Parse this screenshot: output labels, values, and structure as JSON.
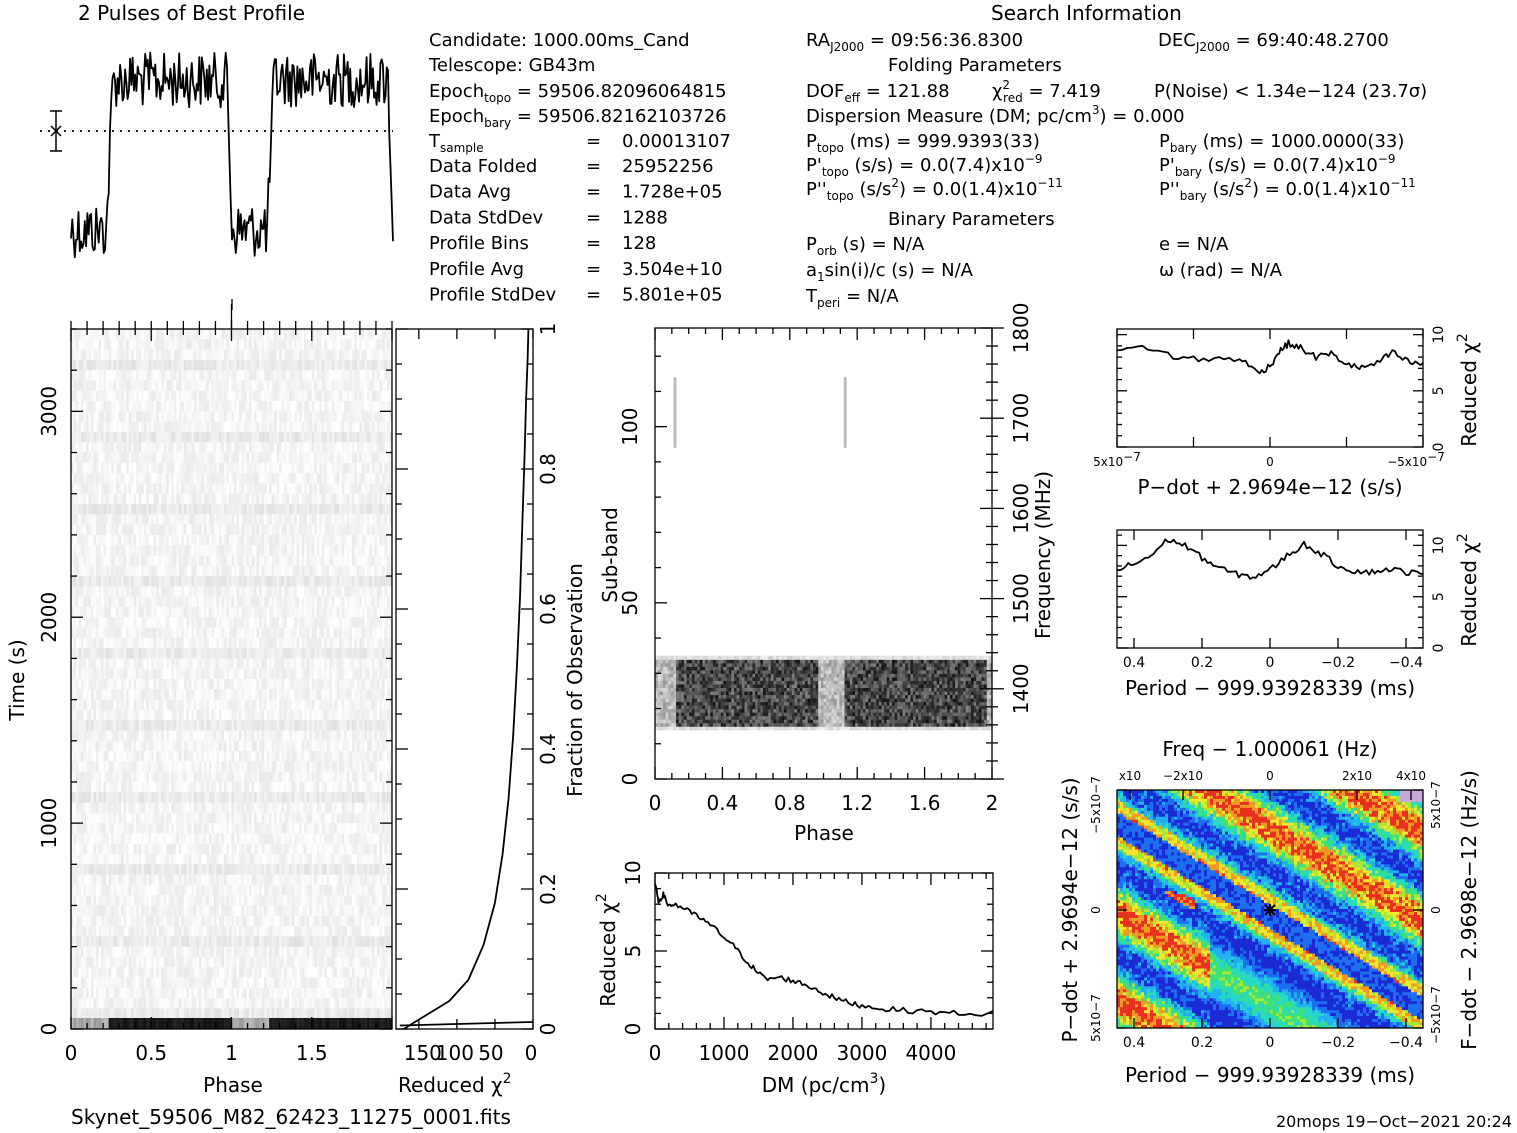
{
  "header": {
    "profile_title": "2 Pulses of Best Profile",
    "search_title": "Search Information",
    "fold_title": "Folding Parameters",
    "binary_title": "Binary Parameters"
  },
  "info": {
    "candidate": "Candidate:   1000.00ms_Cand",
    "telescope": "Telescope:   GB43m",
    "epoch_topo_label": "Epoch",
    "epoch_topo_sub": "topo",
    "epoch_topo_val": " = 59506.82096064815",
    "epoch_bary_label": "Epoch",
    "epoch_bary_sub": "bary",
    "epoch_bary_val": " = 59506.82162103726",
    "tsample_label": "T",
    "tsample_sub": "sample",
    "tsample_eq": "=",
    "tsample_val": "0.00013107",
    "rows": [
      {
        "label": "Data Folded",
        "eq": "=",
        "val": "25952256"
      },
      {
        "label": "Data Avg",
        "eq": "=",
        "val": "1.728e+05"
      },
      {
        "label": "Data StdDev",
        "eq": "=",
        "val": "1288"
      },
      {
        "label": "Profile Bins",
        "eq": "=",
        "val": "128"
      },
      {
        "label": "Profile Avg",
        "eq": "=",
        "val": "3.504e+10"
      },
      {
        "label": "Profile StdDev",
        "eq": "=",
        "val": "5.801e+05"
      }
    ]
  },
  "search": {
    "ra_label": "RA",
    "ra_sub": "J2000",
    "ra_val": " = 09:56:36.8300",
    "dec_label": "DEC",
    "dec_sub": "J2000",
    "dec_val": " = 69:40:48.2700",
    "dof_label": "DOF",
    "dof_sub": "eff",
    "dof_val": " = 121.88",
    "chi_label": "χ",
    "chi_sup": "2",
    "chi_sub": "red",
    "chi_val": " = 7.419",
    "pnoise": "P(Noise) < 1.34e−124   (23.7σ)",
    "dm_label": "Dispersion Measure (DM; pc/cm",
    "dm_sup": "3",
    "dm_val": ") = 0.000",
    "ptopo_label": "P",
    "ptopo_sub": "topo",
    "ptopo_val": " (ms) =  999.9393(33)",
    "pbary_label": "P",
    "pbary_sub": "bary",
    "pbary_val": " (ms) =  1000.0000(33)",
    "pdtopo_label": "P'",
    "pdtopo_sub": "topo",
    "pdtopo_val": " (s/s) = 0.0(7.4)x10",
    "pdtopo_exp": "−9",
    "pdbary_label": "P'",
    "pdbary_sub": "bary",
    "pdbary_val": " (s/s) = 0.0(7.4)x10",
    "pdbary_exp": "−9",
    "pddtopo_label": "P''",
    "pddtopo_sub": "topo",
    "pddtopo_val": " (s/s",
    "pddtopo_sup2": "2",
    "pddtopo_val2": ") = 0.0(1.4)x10",
    "pddtopo_exp": "−11",
    "pddbary_label": "P''",
    "pddbary_sub": "bary",
    "pddbary_val": " (s/s",
    "pddbary_sup2": "2",
    "pddbary_val2": ") = 0.0(1.4)x10",
    "pddbary_exp": "−11",
    "porb_label": "P",
    "porb_sub": "orb",
    "porb_val": " (s) = N/A",
    "e_val": "e = N/A",
    "a1_label": "a",
    "a1_sub": "1",
    "a1_val": "sin(i)/c (s) = N/A",
    "omega_val": "ω (rad) = N/A",
    "tperi_label": "T",
    "tperi_sub": "peri",
    "tperi_val": " = N/A"
  },
  "footer": {
    "filename": "Skynet_59506_M82_62423_11275_0001.fits",
    "stamp": "20mops 19−Oct−2021 20:24"
  },
  "chart_data": [
    {
      "type": "line",
      "name": "profile",
      "title": "2 Pulses of Best Profile",
      "x": "Phase",
      "xlim": [
        0,
        2
      ],
      "description_values": {
        "low_phase_ranges": [
          [
            0,
            0.22
          ],
          [
            1.0,
            1.22
          ]
        ],
        "high_phase_ranges": [
          [
            0.22,
            1.0
          ],
          [
            1.22,
            2.0
          ]
        ]
      }
    },
    {
      "type": "heatmap",
      "name": "time-phase",
      "xlabel": "Phase",
      "ylabel": "Time (s)",
      "xlim": [
        0,
        2
      ],
      "ylim": [
        0,
        3400
      ],
      "xticks": [
        "0",
        "0.5",
        "1",
        "1.5"
      ],
      "yticks": [
        "0",
        "1000",
        "2000",
        "3000"
      ]
    },
    {
      "type": "line",
      "name": "time-chi2",
      "xlabel": "Reduced χ2",
      "ylabel": "Fraction of Observation",
      "xticks": [
        "150",
        "100",
        "50",
        "0"
      ],
      "xlim": [
        180,
        0
      ],
      "ylim": [
        0,
        1
      ],
      "yticks": [
        "0",
        "0.2",
        "0.4",
        "0.6",
        "0.8",
        "1"
      ],
      "points": [
        [
          170,
          0.0
        ],
        [
          140,
          0.02
        ],
        [
          110,
          0.04
        ],
        [
          85,
          0.07
        ],
        [
          65,
          0.12
        ],
        [
          50,
          0.18
        ],
        [
          40,
          0.25
        ],
        [
          32,
          0.33
        ],
        [
          26,
          0.42
        ],
        [
          21,
          0.52
        ],
        [
          17,
          0.62
        ],
        [
          14,
          0.72
        ],
        [
          11,
          0.82
        ],
        [
          9,
          0.9
        ],
        [
          7,
          0.96
        ],
        [
          6,
          1.0
        ]
      ]
    },
    {
      "type": "heatmap",
      "name": "subband-phase",
      "xlabel": "Phase",
      "ylabel": "Sub-band",
      "y2label": "Frequency (MHz)",
      "xlim": [
        0,
        2
      ],
      "ylim": [
        0,
        128
      ],
      "y2lim": [
        1300,
        1800
      ],
      "xticks": [
        "0",
        "0.4",
        "0.8",
        "1.2",
        "1.6",
        "2"
      ],
      "yticks": [
        "0",
        "50",
        "100"
      ],
      "y2ticks": [
        "1400",
        "1500",
        "1600",
        "1700",
        "1800"
      ]
    },
    {
      "type": "line",
      "name": "dm-chi2",
      "xlabel": "DM (pc/cm3)",
      "ylabel": "Reduced χ2",
      "xlim": [
        0,
        4900
      ],
      "ylim": [
        0,
        10
      ],
      "xticks": [
        "0",
        "1000",
        "2000",
        "3000",
        "4000"
      ],
      "yticks": [
        "0",
        "5",
        "10"
      ],
      "points": [
        [
          0,
          9.3
        ],
        [
          50,
          8.2
        ],
        [
          120,
          8.6
        ],
        [
          200,
          7.9
        ],
        [
          300,
          8.0
        ],
        [
          500,
          7.5
        ],
        [
          700,
          7.0
        ],
        [
          900,
          6.3
        ],
        [
          1100,
          5.5
        ],
        [
          1300,
          4.5
        ],
        [
          1450,
          3.8
        ],
        [
          1600,
          3.2
        ],
        [
          1800,
          3.3
        ],
        [
          2000,
          3.1
        ],
        [
          2200,
          2.8
        ],
        [
          2400,
          2.4
        ],
        [
          2600,
          2.0
        ],
        [
          2800,
          1.7
        ],
        [
          3000,
          1.5
        ],
        [
          3300,
          1.3
        ],
        [
          3600,
          1.2
        ],
        [
          4000,
          1.1
        ],
        [
          4400,
          1.0
        ],
        [
          4900,
          1.0
        ]
      ]
    },
    {
      "type": "line",
      "name": "pdot-chi2",
      "xlabel": "P−dot + 2.9694e−12 (s/s)",
      "ylabel": "Reduced χ2",
      "xlim": [
        5e-07,
        -5e-07
      ],
      "ylim": [
        0,
        10.5
      ],
      "xticks": [
        "5x10−7",
        "0",
        "−5x10−7"
      ],
      "yticks": [
        "0",
        "5",
        "10"
      ],
      "points": [
        [
          5e-07,
          8.6
        ],
        [
          4e-07,
          8.9
        ],
        [
          3e-07,
          7.9
        ],
        [
          2e-07,
          7.8
        ],
        [
          1e-07,
          7.9
        ],
        [
          4e-08,
          6.6
        ],
        [
          0,
          7.2
        ],
        [
          -3e-08,
          8.5
        ],
        [
          -6e-08,
          9.2
        ],
        [
          -1e-07,
          8.8
        ],
        [
          -1.5e-07,
          8.0
        ],
        [
          -2e-07,
          8.3
        ],
        [
          -2.5e-07,
          7.4
        ],
        [
          -3e-07,
          7.0
        ],
        [
          -3.6e-07,
          7.6
        ],
        [
          -4e-07,
          8.4
        ],
        [
          -4.5e-07,
          7.6
        ],
        [
          -5e-07,
          7.3
        ]
      ]
    },
    {
      "type": "line",
      "name": "period-chi2",
      "xlabel": "Period − 999.93928339 (ms)",
      "ylabel": "Reduced χ2",
      "xlim": [
        0.45,
        -0.45
      ],
      "ylim": [
        0,
        11.5
      ],
      "xticks": [
        "0.4",
        "0.2",
        "0",
        "−0.2",
        "−0.4"
      ],
      "yticks": [
        "0",
        "5",
        "10"
      ],
      "points": [
        [
          0.45,
          7.6
        ],
        [
          0.4,
          8.2
        ],
        [
          0.35,
          9.0
        ],
        [
          0.3,
          10.6
        ],
        [
          0.25,
          10.0
        ],
        [
          0.2,
          8.8
        ],
        [
          0.15,
          7.8
        ],
        [
          0.1,
          7.2
        ],
        [
          0.05,
          6.9
        ],
        [
          0.0,
          7.6
        ],
        [
          -0.05,
          9.0
        ],
        [
          -0.1,
          10.1
        ],
        [
          -0.15,
          9.2
        ],
        [
          -0.2,
          8.0
        ],
        [
          -0.25,
          7.5
        ],
        [
          -0.3,
          7.4
        ],
        [
          -0.35,
          7.7
        ],
        [
          -0.4,
          7.4
        ],
        [
          -0.45,
          7.2
        ]
      ]
    },
    {
      "type": "heatmap",
      "name": "period-pdot",
      "title": "Freq − 1.000061 (Hz)",
      "xlabel": "Period − 999.93928339 (ms)",
      "ylabel": "P−dot + 2.9694e−12 (s/s)",
      "y2label": "F−dot − 2.9698e−12 (Hz/s)",
      "xticks": [
        "0.4",
        "0.2",
        "0",
        "−0.2",
        "−0.4"
      ],
      "x2ticks": [
        "−4x10−4",
        "−2x10−4",
        "0",
        "2x10−4",
        "4x10−4"
      ],
      "yticks": [
        "5x10−7",
        "0",
        "−5x10−7"
      ],
      "y2ticks": [
        "−5x10−7",
        "0",
        "5x10−7"
      ],
      "colors": [
        "#1a2bd6",
        "#1e6ef0",
        "#22b0f0",
        "#25d8c8",
        "#3ee07a",
        "#a6e83a",
        "#f0e62a",
        "#f09a26",
        "#e83020"
      ]
    }
  ]
}
